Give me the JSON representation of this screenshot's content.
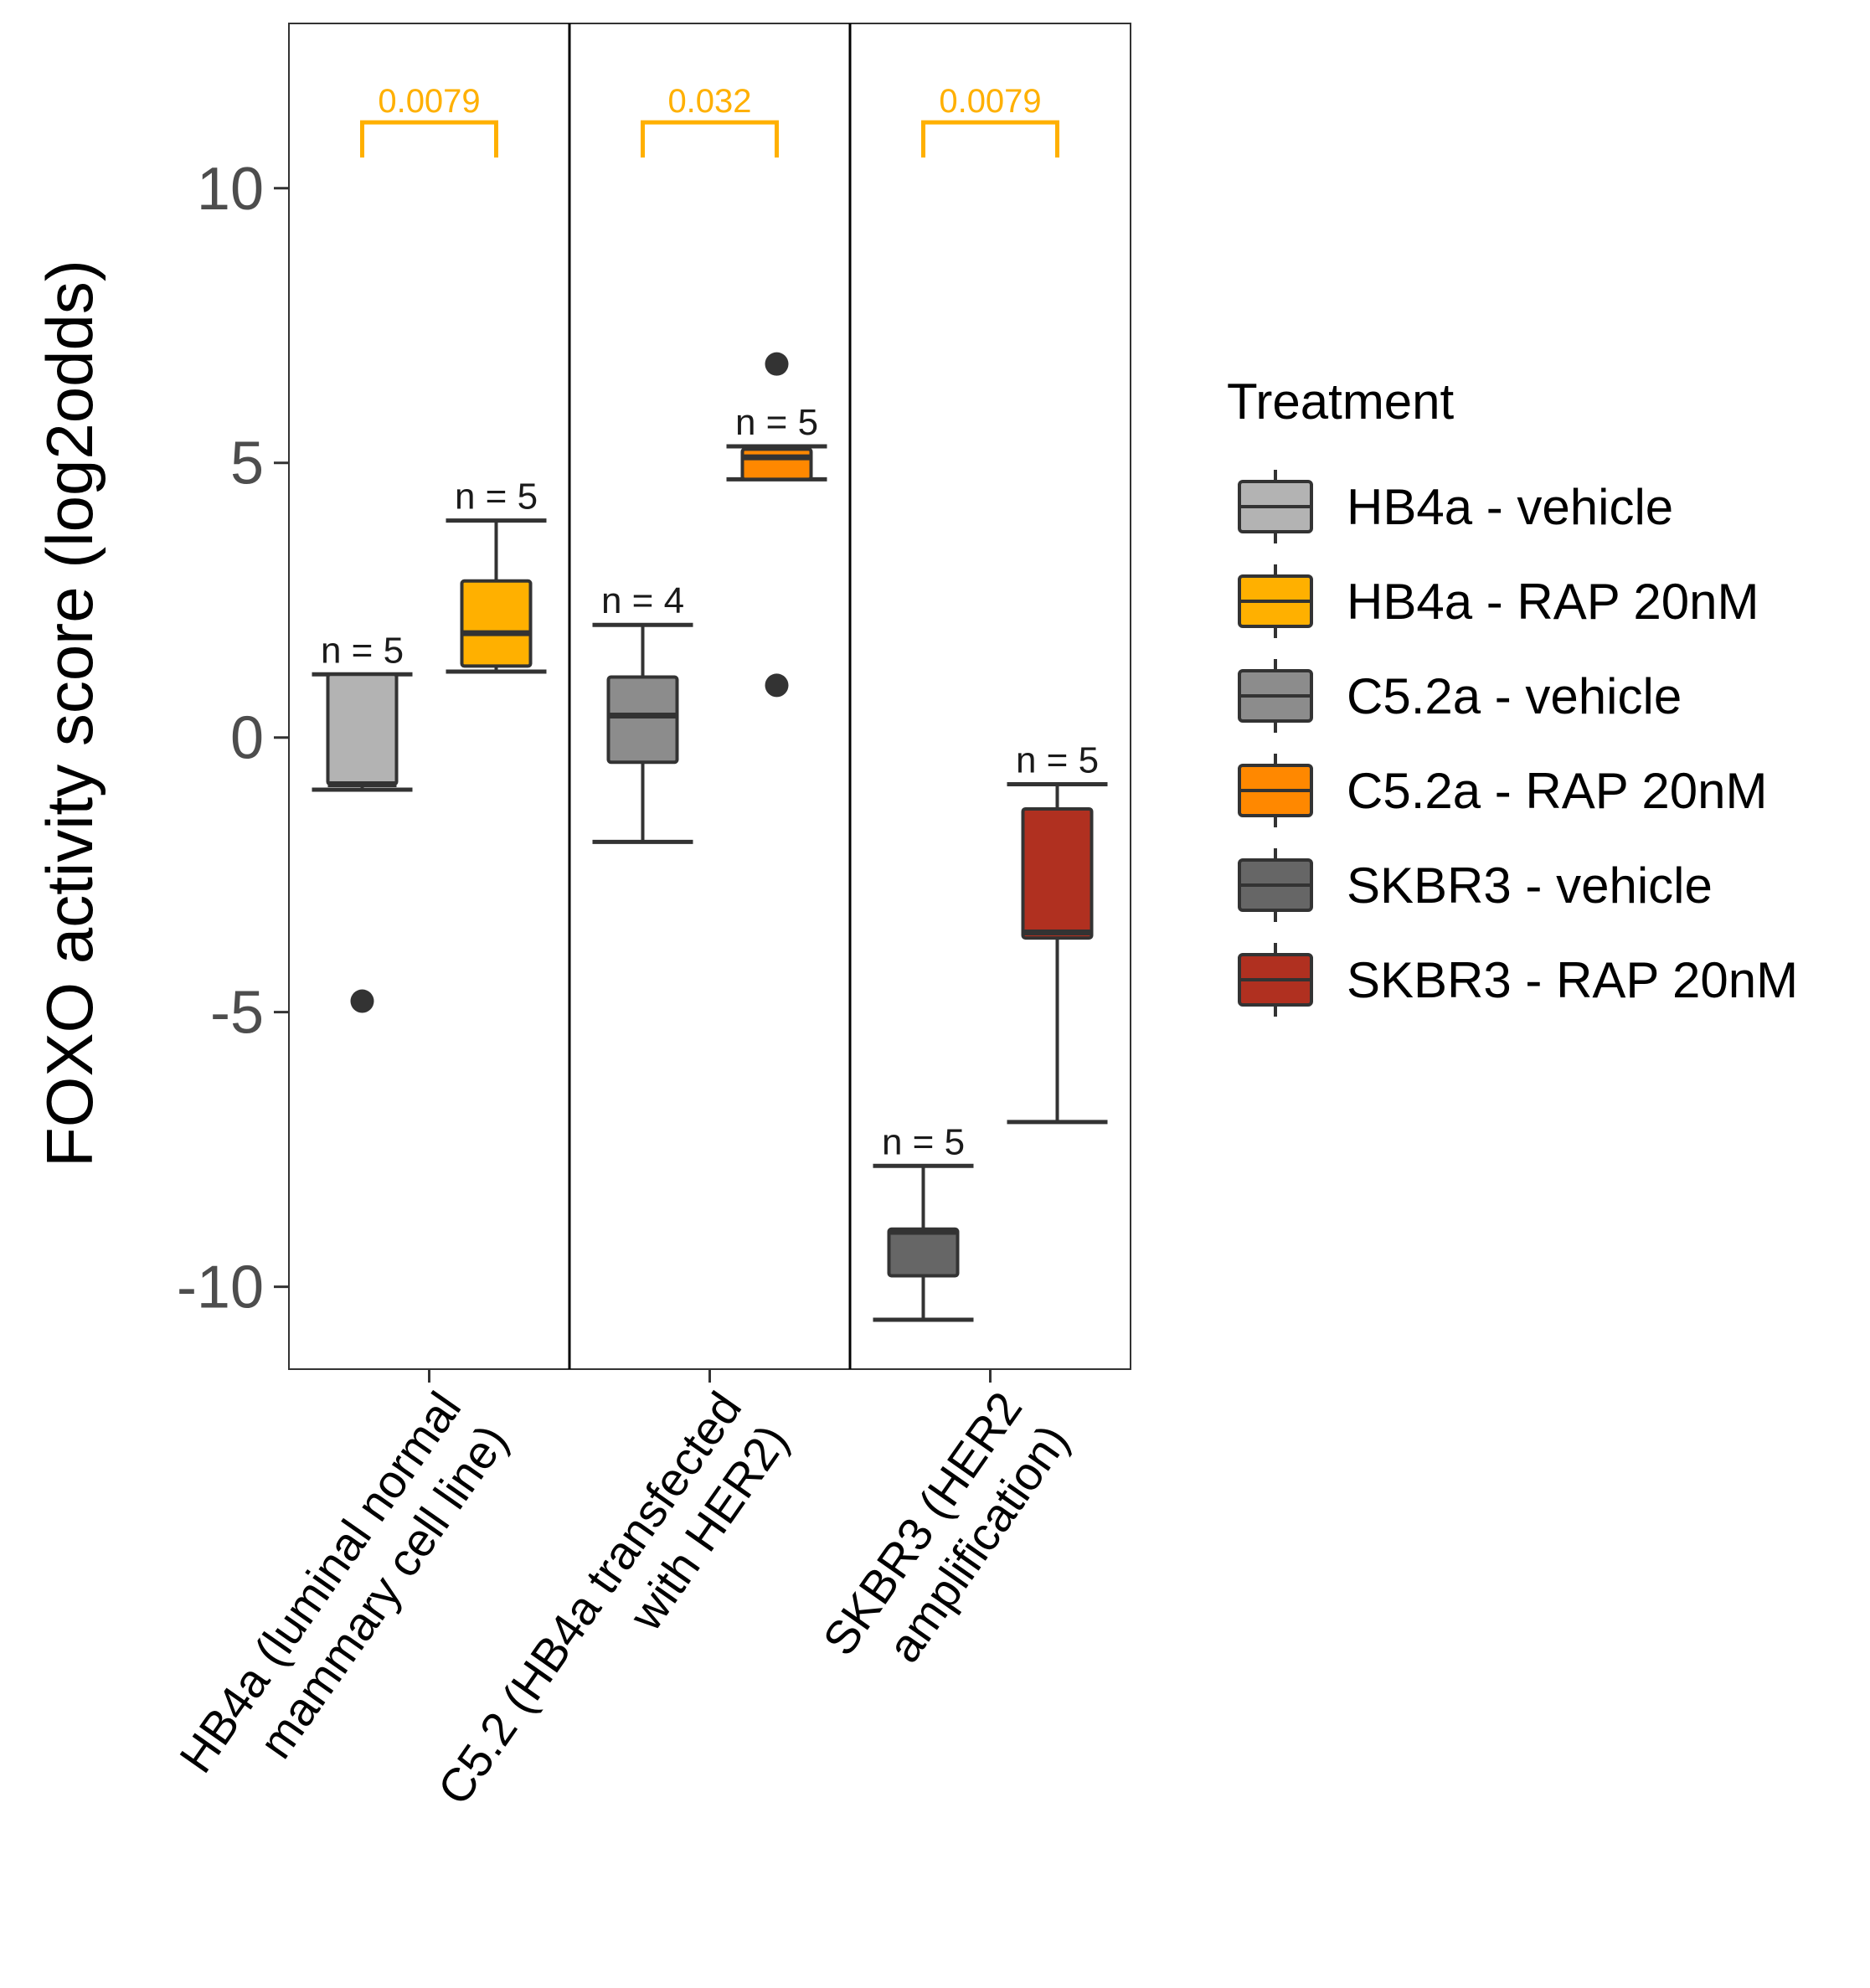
{
  "chart_data": {
    "type": "boxplot",
    "ylabel": "FOXO activity score (log2odds)",
    "xlabel": "",
    "ylim": [
      -11.5,
      13
    ],
    "yticks": [
      -10,
      -5,
      0,
      5,
      10
    ],
    "ytick_labels": [
      "-10",
      "-5",
      "0",
      "5",
      "10"
    ],
    "grid": false,
    "legend_position": "right",
    "legend": {
      "title": "Treatment",
      "entries": [
        {
          "label": "HB4a - vehicle",
          "color": "#b3b3b3"
        },
        {
          "label": "HB4a - RAP 20nM",
          "color": "#ffb000"
        },
        {
          "label": "C5.2a - vehicle",
          "color": "#8c8c8c"
        },
        {
          "label": "C5.2a - RAP 20nM",
          "color": "#ff8800"
        },
        {
          "label": "SKBR3 - vehicle",
          "color": "#666666"
        },
        {
          "label": "SKBR3 - RAP 20nM",
          "color": "#b03020"
        }
      ]
    },
    "categories": [
      {
        "label_lines": [
          "HB4a (luminal normal",
          "mammary cell line)"
        ]
      },
      {
        "label_lines": [
          "C5.2 (HB4a transfected",
          "with HER2)"
        ]
      },
      {
        "label_lines": [
          "SKBR3 (HER2",
          "amplification)"
        ]
      }
    ],
    "boxes": [
      {
        "group": 0,
        "offset": -1,
        "treatment": "HB4a - vehicle",
        "color": "#b3b3b3",
        "min": -0.95,
        "q1": -0.85,
        "median": -0.85,
        "q3": 1.15,
        "max": 1.15,
        "outliers": [
          -4.8
        ],
        "n_label": "n = 5"
      },
      {
        "group": 0,
        "offset": 1,
        "treatment": "HB4a - RAP 20nM",
        "color": "#ffb000",
        "min": 1.2,
        "q1": 1.3,
        "median": 1.9,
        "q3": 2.85,
        "max": 3.95,
        "outliers": [],
        "n_label": "n = 5"
      },
      {
        "group": 1,
        "offset": -1,
        "treatment": "C5.2a - vehicle",
        "color": "#8c8c8c",
        "min": -1.9,
        "q1": -0.45,
        "median": 0.4,
        "q3": 1.1,
        "max": 2.05,
        "outliers": [],
        "n_label": "n = 4"
      },
      {
        "group": 1,
        "offset": 1,
        "treatment": "C5.2a - RAP 20nM",
        "color": "#ff8800",
        "min": 4.7,
        "q1": 4.7,
        "median": 5.1,
        "q3": 5.25,
        "max": 5.3,
        "outliers": [
          6.8,
          0.95
        ],
        "n_label": "n = 5"
      },
      {
        "group": 2,
        "offset": -1,
        "treatment": "SKBR3 - vehicle",
        "color": "#666666",
        "min": -10.6,
        "q1": -9.8,
        "median": -9.0,
        "q3": -8.95,
        "max": -7.8,
        "outliers": [],
        "n_label": "n = 5"
      },
      {
        "group": 2,
        "offset": 1,
        "treatment": "SKBR3 - RAP 20nM",
        "color": "#b03020",
        "min": -7.0,
        "q1": -3.65,
        "median": -3.55,
        "q3": -1.3,
        "max": -0.85,
        "outliers": [],
        "n_label": "n = 5"
      }
    ],
    "pvalues": [
      {
        "group": 0,
        "label": "0.0079",
        "y": 11.2
      },
      {
        "group": 1,
        "label": "0.032",
        "y": 11.2
      },
      {
        "group": 2,
        "label": "0.0079",
        "y": 11.2
      }
    ],
    "pvalue_color": "#ffb000"
  }
}
